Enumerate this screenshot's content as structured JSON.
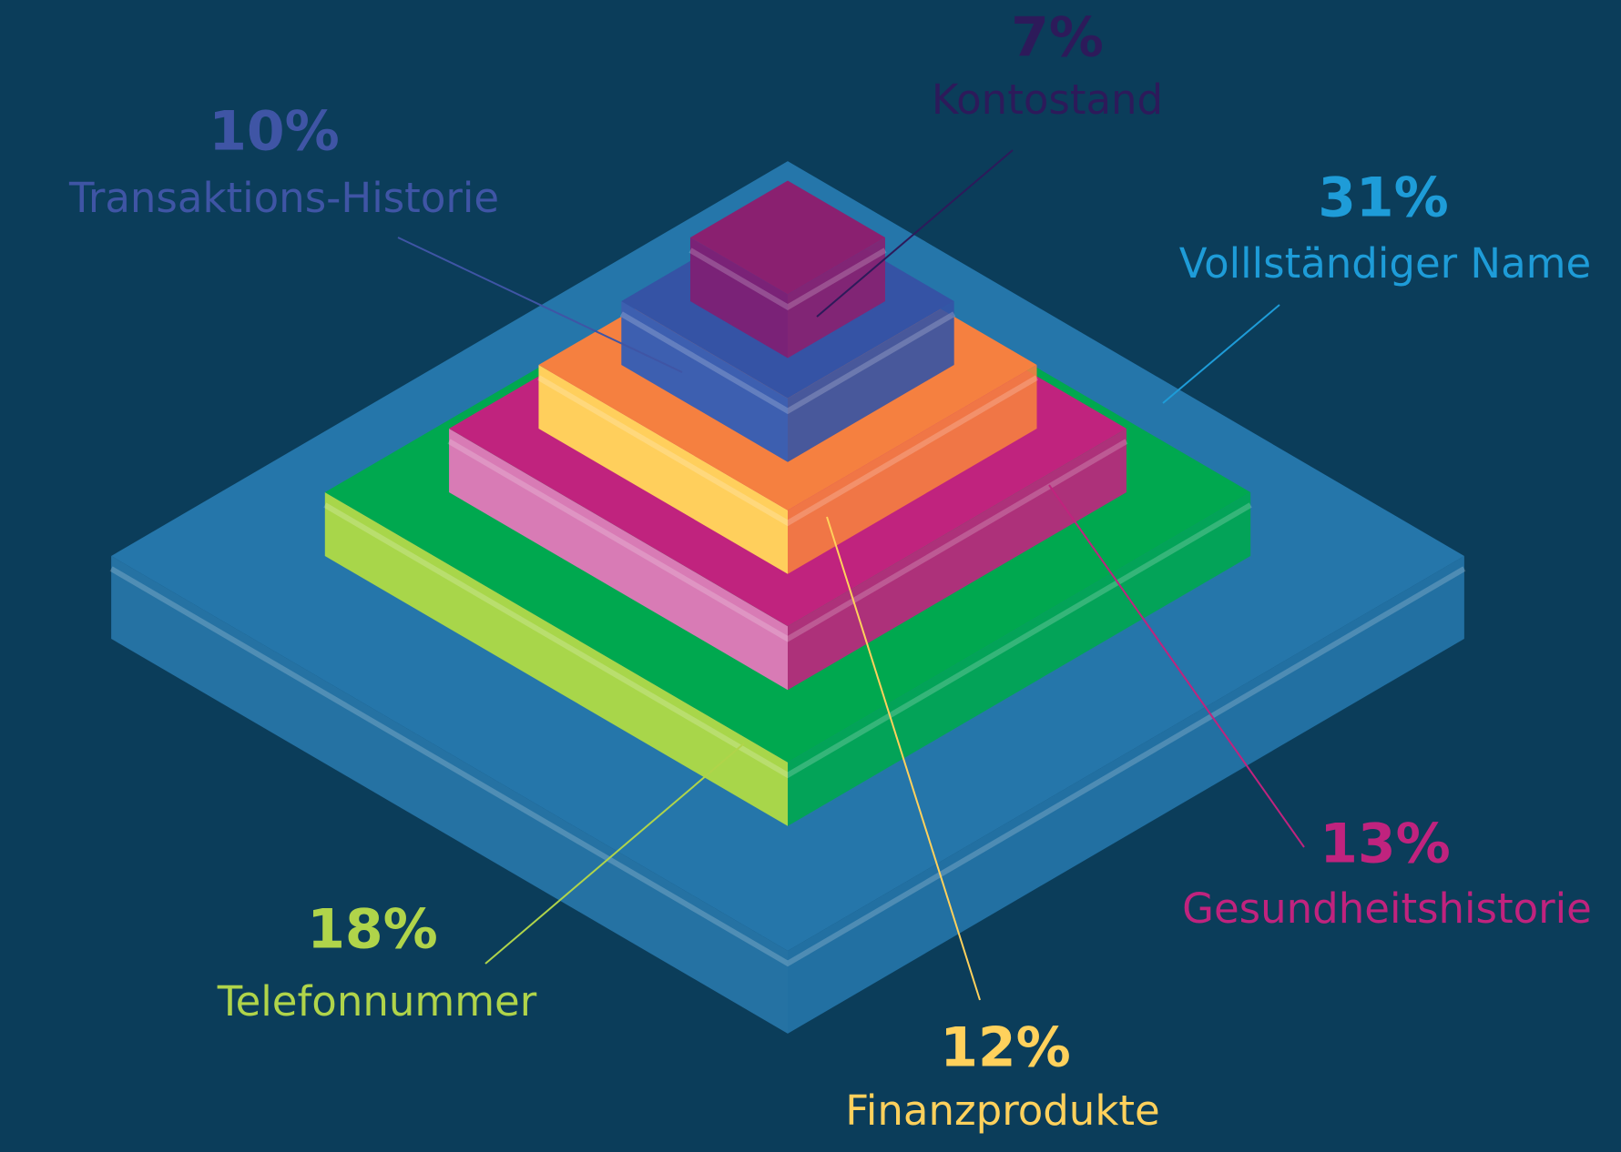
{
  "chart_data": {
    "type": "pyramid",
    "categories": [
      "Volllständiger Name",
      "Telefonnummer",
      "Gesundheitshistorie",
      "Finanzprodukte",
      "Transaktions-Historie",
      "Kontostand"
    ],
    "values": [
      31,
      18,
      13,
      12,
      10,
      7
    ],
    "value_labels": [
      "31%",
      "18%",
      "13%",
      "12%",
      "10%",
      "7%"
    ],
    "colors": [
      "#2a80b8",
      "#00a84f",
      "#c0237e",
      "#f58040",
      "#3553a5",
      "#8a2070"
    ],
    "side_colors": [
      "#2a7bb0",
      "#a8d64a",
      "#d87bb5",
      "#ffcf5c",
      "#3d5fb0",
      "#7a2277"
    ],
    "label_colors": [
      "#1e9cd8",
      "#b0d44a",
      "#c0237e",
      "#ffd15c",
      "#3f55a5",
      "#2d1a5a"
    ]
  }
}
